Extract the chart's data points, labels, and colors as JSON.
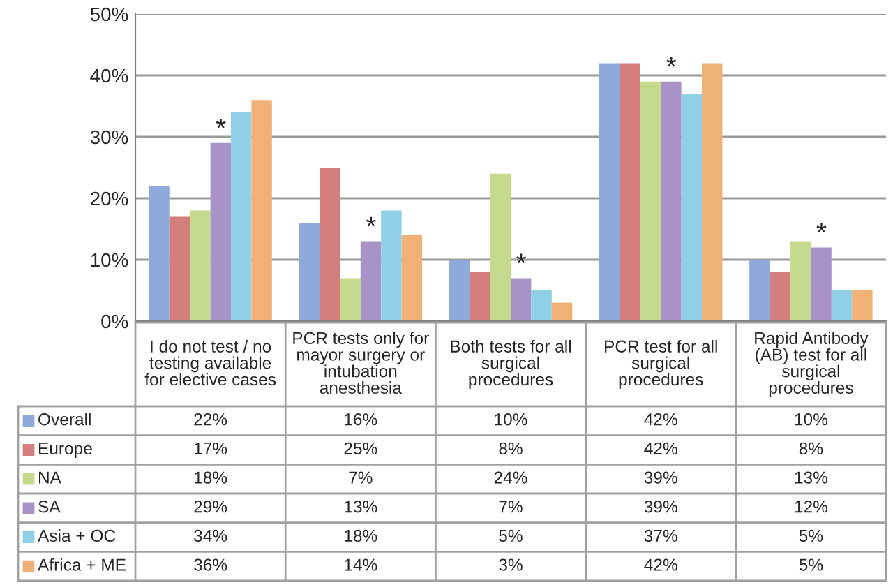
{
  "chart_data": {
    "type": "bar",
    "categories": [
      "I do not test / no testing available for elective cases",
      "PCR tests only for mayor surgery or intubation anesthesia",
      "Both tests for all surgical procedures",
      "PCR test for all surgical procedures",
      "Rapid Antibody (AB) test for all surgical procedures"
    ],
    "series": [
      {
        "name": "Overall",
        "color": "#8eaadb",
        "values": [
          22,
          16,
          10,
          42,
          10
        ],
        "value_labels": [
          "22%",
          "16%",
          "10%",
          "42%",
          "10%"
        ]
      },
      {
        "name": "Europe",
        "color": "#d47f7d",
        "values": [
          17,
          25,
          8,
          42,
          8
        ],
        "value_labels": [
          "17%",
          "25%",
          "8%",
          "42%",
          "8%"
        ]
      },
      {
        "name": "NA",
        "color": "#c5da8e",
        "values": [
          18,
          7,
          24,
          39,
          13
        ],
        "value_labels": [
          "18%",
          "7%",
          "24%",
          "39%",
          "13%"
        ]
      },
      {
        "name": "SA",
        "color": "#a793c6",
        "values": [
          29,
          13,
          7,
          39,
          12
        ],
        "value_labels": [
          "29%",
          "13%",
          "7%",
          "39%",
          "12%"
        ]
      },
      {
        "name": "Asia + OC",
        "color": "#8fd0e6",
        "values": [
          34,
          18,
          5,
          37,
          5
        ],
        "value_labels": [
          "34%",
          "18%",
          "5%",
          "37%",
          "5%"
        ]
      },
      {
        "name": "Africa + ME",
        "color": "#f0b177",
        "values": [
          36,
          14,
          3,
          42,
          5
        ],
        "value_labels": [
          "36%",
          "14%",
          "3%",
          "42%",
          "5%"
        ]
      }
    ],
    "ylim": [
      0,
      50
    ],
    "yticks": [
      {
        "value": 0,
        "label": "0%"
      },
      {
        "value": 10,
        "label": "10%"
      },
      {
        "value": 20,
        "label": "20%"
      },
      {
        "value": 30,
        "label": "30%"
      },
      {
        "value": 40,
        "label": "40%"
      },
      {
        "value": 50,
        "label": "50%"
      }
    ],
    "grid": "y",
    "legend": "bottom left",
    "annotations": [
      {
        "text": "*",
        "x": "I do not test / no testing available for elective cases",
        "y": 29
      },
      {
        "text": "*",
        "x": "PCR tests only for mayor surgery or intubation anesthesia",
        "y": 13
      },
      {
        "text": "*",
        "x": "Both tests for all surgical procedures",
        "y": 7
      },
      {
        "text": "*",
        "x": "PCR test for all surgical procedures",
        "y": 39
      },
      {
        "text": "*",
        "x": "Rapid Antibody (AB) test for all surgical procedures",
        "y": 12
      }
    ]
  }
}
